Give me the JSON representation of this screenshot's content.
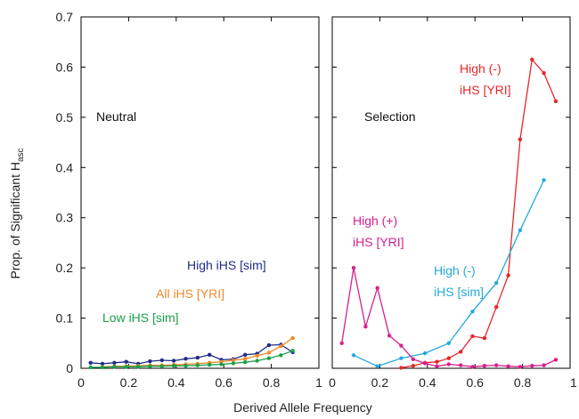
{
  "chart_data": {
    "type": "line",
    "ylabel_main": "Prop. of Significant H",
    "ylabel_sub": "asc",
    "xlabel": "Derived Allele Frequency",
    "ylim": [
      0,
      0.7
    ],
    "y_ticks": [
      "0",
      "0.1",
      "0.2",
      "0.3",
      "0.4",
      "0.5",
      "0.6",
      "0.7"
    ],
    "panels": [
      {
        "title": "Neutral",
        "xlim": [
          0,
          1
        ],
        "x_ticks": [
          "0",
          "0.2",
          "0.4",
          "0.6",
          "0.8",
          "1"
        ],
        "series": [
          {
            "name": "High iHS [sim]",
            "color": "#1f2a8a",
            "x": [
              0.04,
              0.09,
              0.14,
              0.19,
              0.24,
              0.29,
              0.34,
              0.39,
              0.44,
              0.49,
              0.54,
              0.59,
              0.64,
              0.69,
              0.74,
              0.79,
              0.84,
              0.89
            ],
            "y": [
              0.011,
              0.009,
              0.011,
              0.013,
              0.009,
              0.014,
              0.016,
              0.015,
              0.019,
              0.021,
              0.027,
              0.017,
              0.018,
              0.027,
              0.029,
              0.046,
              0.047,
              0.032
            ]
          },
          {
            "name": "All iHS [YRI]",
            "color": "#f08a2c",
            "x": [
              0.09,
              0.14,
              0.19,
              0.24,
              0.29,
              0.34,
              0.39,
              0.44,
              0.49,
              0.54,
              0.59,
              0.64,
              0.69,
              0.74,
              0.79,
              0.84,
              0.89
            ],
            "y": [
              0.003,
              0.004,
              0.004,
              0.005,
              0.006,
              0.006,
              0.007,
              0.008,
              0.009,
              0.011,
              0.013,
              0.016,
              0.019,
              0.025,
              0.031,
              0.044,
              0.06
            ]
          },
          {
            "name": "Low iHS [sim]",
            "color": "#1aa14a",
            "x": [
              0.04,
              0.09,
              0.14,
              0.19,
              0.24,
              0.29,
              0.34,
              0.39,
              0.44,
              0.49,
              0.54,
              0.59,
              0.64,
              0.69,
              0.74,
              0.79,
              0.84,
              0.89
            ],
            "y": [
              0.002,
              0.002,
              0.003,
              0.003,
              0.003,
              0.004,
              0.004,
              0.005,
              0.005,
              0.006,
              0.007,
              0.008,
              0.01,
              0.012,
              0.015,
              0.02,
              0.026,
              0.035
            ]
          }
        ]
      },
      {
        "title": "Selection",
        "xlim": [
          0,
          1
        ],
        "x_ticks": [
          "0",
          "0.2",
          "0.4",
          "0.6",
          "0.8",
          "1"
        ],
        "series": [
          {
            "name": "High (-) iHS [YRI]",
            "color": "#e8262a",
            "x": [
              0.29,
              0.34,
              0.39,
              0.44,
              0.49,
              0.54,
              0.59,
              0.64,
              0.69,
              0.74,
              0.79,
              0.84,
              0.89,
              0.94
            ],
            "y": [
              0.001,
              0.005,
              0.011,
              0.013,
              0.02,
              0.033,
              0.064,
              0.06,
              0.122,
              0.185,
              0.456,
              0.615,
              0.588,
              0.532
            ]
          },
          {
            "name": "High (-) iHS [sim]",
            "color": "#25a9dc",
            "x": [
              0.09,
              0.19,
              0.29,
              0.39,
              0.49,
              0.59,
              0.69,
              0.79,
              0.89
            ],
            "y": [
              0.026,
              0.004,
              0.02,
              0.03,
              0.05,
              0.113,
              0.17,
              0.275,
              0.375
            ]
          },
          {
            "name": "High (+) iHS [YRI]",
            "color": "#d81f8d",
            "x": [
              0.04,
              0.09,
              0.14,
              0.19,
              0.24,
              0.29,
              0.34,
              0.39,
              0.44,
              0.49,
              0.54,
              0.59,
              0.64,
              0.69,
              0.74,
              0.79,
              0.84,
              0.89,
              0.94
            ],
            "y": [
              0.05,
              0.2,
              0.083,
              0.16,
              0.065,
              0.045,
              0.018,
              0.01,
              0.004,
              0.008,
              0.006,
              0.003,
              0.005,
              0.006,
              0.004,
              0.003,
              0.005,
              0.006,
              0.017
            ]
          }
        ]
      }
    ],
    "annotations": [
      {
        "panel": 0,
        "lines": [
          "High iHS [sim]"
        ],
        "color": "#1f2a8a"
      },
      {
        "panel": 0,
        "lines": [
          "All iHS [YRI]"
        ],
        "color": "#f08a2c"
      },
      {
        "panel": 0,
        "lines": [
          "Low iHS [sim]"
        ],
        "color": "#1aa14a"
      },
      {
        "panel": 1,
        "lines": [
          "High (-)",
          "iHS [YRI]"
        ],
        "color": "#e8262a"
      },
      {
        "panel": 1,
        "lines": [
          "High (+)",
          "iHS [YRI]"
        ],
        "color": "#d81f8d"
      },
      {
        "panel": 1,
        "lines": [
          "High (-)",
          "iHS [sim]"
        ],
        "color": "#25a9dc"
      }
    ]
  }
}
